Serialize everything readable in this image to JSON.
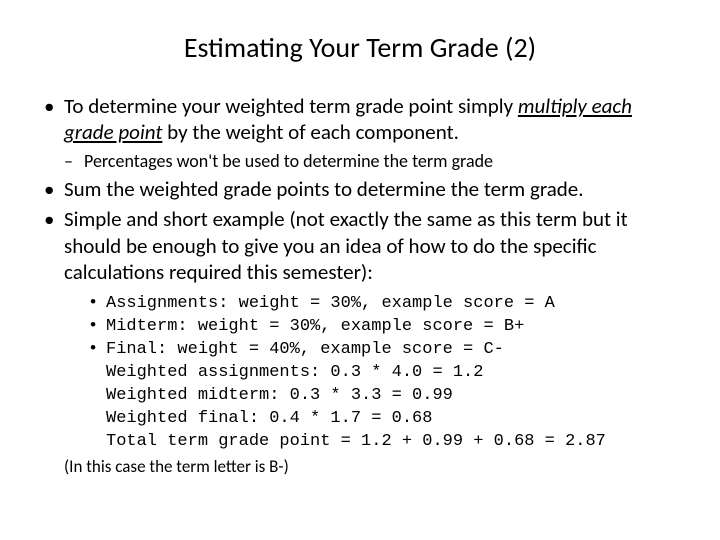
{
  "title": "Estimating Your Term Grade (2)",
  "bullets": {
    "b1_pre": "To determine your weighted term grade point simply ",
    "b1_italic": "multiply each grade point",
    "b1_post": " by the weight of each component.",
    "b1_sub": "Percentages won't be used to determine the term grade",
    "b2": "Sum the weighted grade points to determine the term grade.",
    "b3": "Simple and short example (not exactly the same as this term but it should be enough to give you an idea of how to do the specific calculations required this semester):"
  },
  "mono": {
    "l1": "Assignments: weight = 30%, example score = A",
    "l2": "Midterm: weight = 30%, example score = B+",
    "l3": "Final: weight = 40%, example score = C-",
    "l4": "Weighted assignments: 0.3 * 4.0 = 1.2",
    "l5": "Weighted midterm: 0.3 * 3.3 = 0.99",
    "l6": "Weighted final: 0.4 * 1.7 = 0.68",
    "l7": "Total term grade point = 1.2 + 0.99 + 0.68 = 2.87"
  },
  "closing": "(In this case the term letter is B-)",
  "style": {
    "background_color": "#ffffff",
    "text_color": "#000000",
    "title_fontsize": 28,
    "body_fontsize": 21,
    "sub_fontsize": 18,
    "mono_fontsize": 17,
    "body_font": "Calibri",
    "mono_font": "Courier New"
  }
}
